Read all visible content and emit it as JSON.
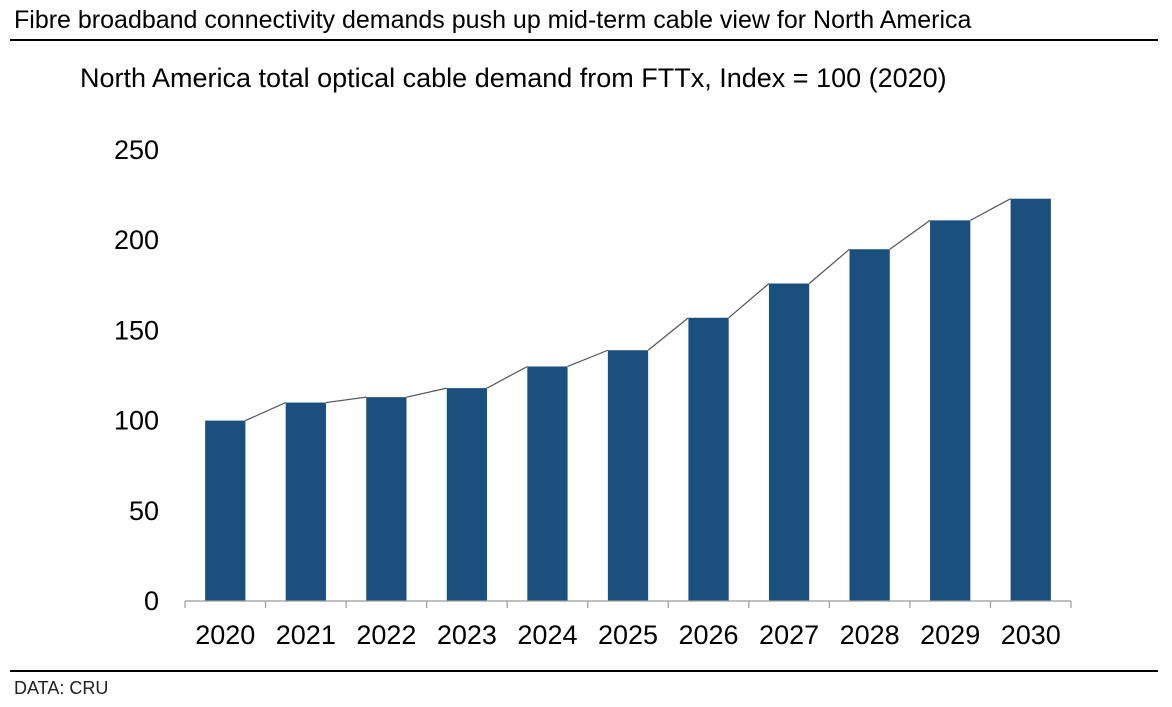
{
  "headline": "Fibre broadband connectivity demands push up mid-term cable view for North America",
  "source": "DATA: CRU",
  "colors": {
    "bar": "#1b4f7e",
    "connector": "#555555",
    "axis": "#9a9a9a"
  },
  "chart_data": {
    "type": "bar",
    "title": "North America total optical cable demand from FTTx, Index = 100 (2020)",
    "xlabel": "",
    "ylabel": "",
    "categories": [
      "2020",
      "2021",
      "2022",
      "2023",
      "2024",
      "2025",
      "2026",
      "2027",
      "2028",
      "2029",
      "2030"
    ],
    "values": [
      100,
      110,
      113,
      118,
      130,
      139,
      157,
      176,
      195,
      211,
      223
    ],
    "ylim": [
      0,
      250
    ],
    "yticks": [
      0,
      50,
      100,
      150,
      200,
      250
    ],
    "grid": false,
    "legend": "none",
    "connector_lines": true
  }
}
